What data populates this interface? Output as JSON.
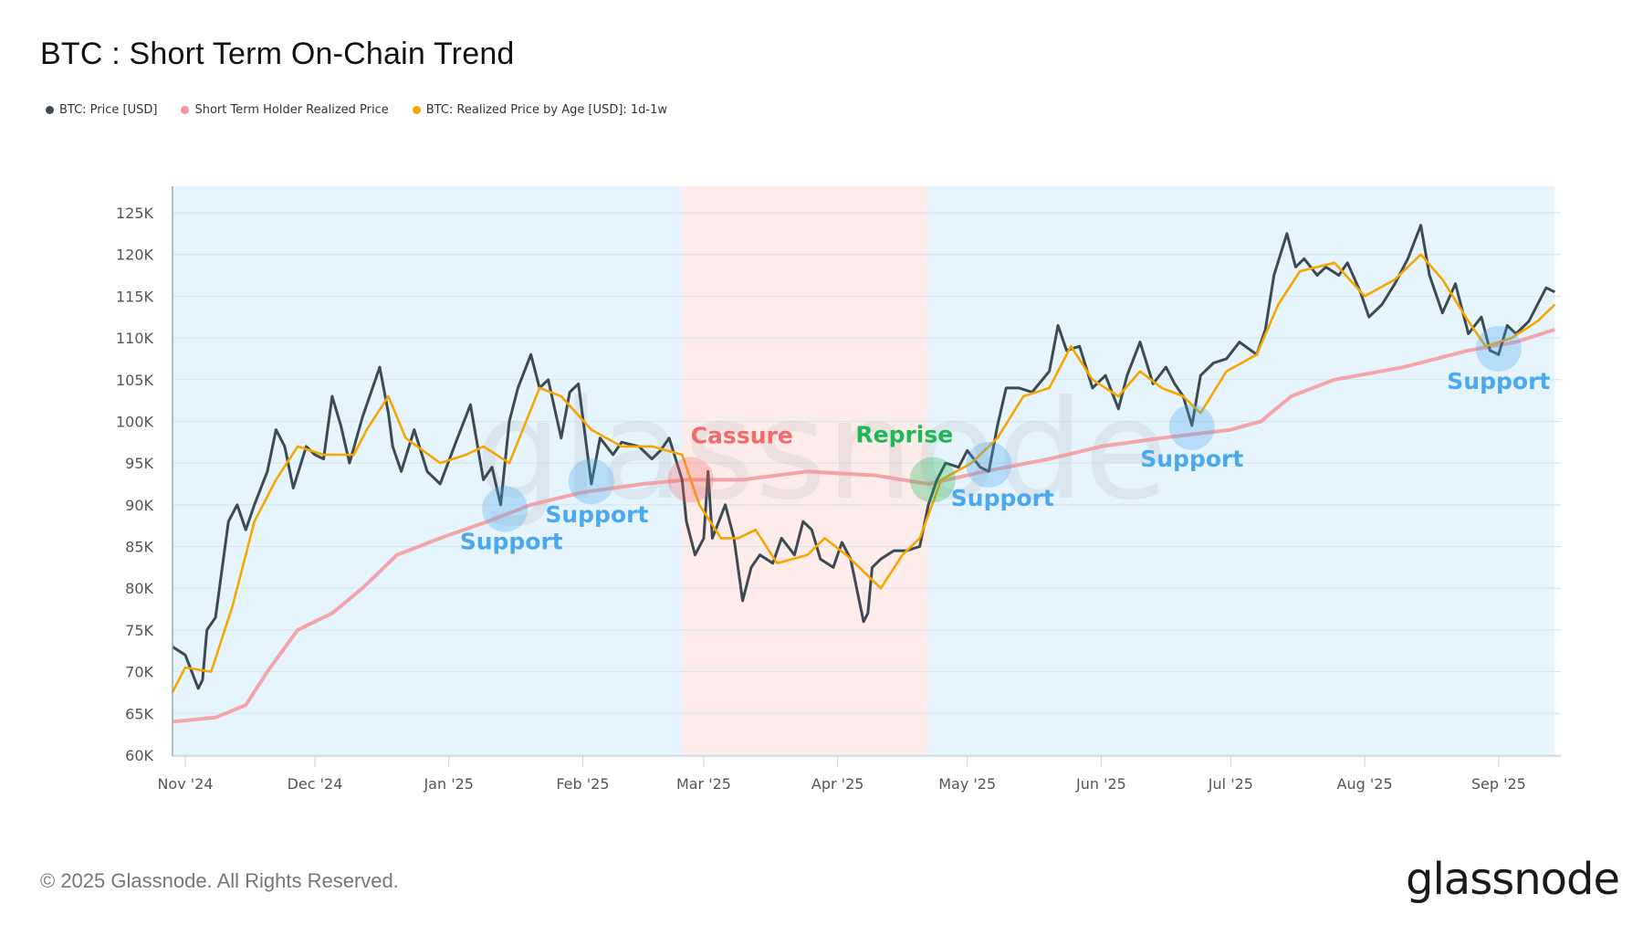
{
  "title": "BTC : Short Term On-Chain Trend",
  "legend": [
    {
      "label": "BTC: Price [USD]",
      "color": "#3d4a52"
    },
    {
      "label": "Short Term Holder Realized Price",
      "color": "#f4979c"
    },
    {
      "label": "BTC: Realized Price by Age [USD]: 1d-1w",
      "color": "#f7a600"
    }
  ],
  "footer": {
    "copyright": "© 2025 Glassnode. All Rights Reserved.",
    "logo": "glassnode"
  },
  "watermark": "glassnode",
  "chart_data": {
    "type": "line",
    "title": "BTC : Short Term On-Chain Trend",
    "xlabel": "",
    "ylabel": "",
    "xlim": [
      "2024-10-29",
      "2025-09-14"
    ],
    "ylim": [
      60000,
      128000
    ],
    "grid": true,
    "legend_position": "top-left",
    "y_ticks": [
      60000,
      65000,
      70000,
      75000,
      80000,
      85000,
      90000,
      95000,
      100000,
      105000,
      110000,
      115000,
      120000,
      125000
    ],
    "y_tick_labels": [
      "60K",
      "65K",
      "70K",
      "75K",
      "80K",
      "85K",
      "90K",
      "95K",
      "100K",
      "105K",
      "110K",
      "115K",
      "120K",
      "125K"
    ],
    "x_ticks": [
      "2024-11-01",
      "2024-12-01",
      "2025-01-01",
      "2025-02-01",
      "2025-03-01",
      "2025-04-01",
      "2025-05-01",
      "2025-06-01",
      "2025-07-01",
      "2025-08-01",
      "2025-09-01"
    ],
    "x_tick_labels": [
      "Nov '24",
      "Dec '24",
      "Jan '25",
      "Feb '25",
      "Mar '25",
      "Apr '25",
      "May '25",
      "Jun '25",
      "Jul '25",
      "Aug '25",
      "Sep '25"
    ],
    "regions": [
      {
        "from": "2024-10-29",
        "to": "2025-02-24",
        "color": "#e6f4fd"
      },
      {
        "from": "2025-02-24",
        "to": "2025-04-22",
        "color": "#fdecea"
      },
      {
        "from": "2025-04-22",
        "to": "2025-09-14",
        "color": "#e6f4fd"
      }
    ],
    "series": [
      {
        "name": "BTC: Price [USD]",
        "color": "#3d4a52",
        "points": [
          [
            "2024-10-29",
            73000
          ],
          [
            "2024-11-01",
            72000
          ],
          [
            "2024-11-04",
            68000
          ],
          [
            "2024-11-05",
            69000
          ],
          [
            "2024-11-06",
            75000
          ],
          [
            "2024-11-08",
            76500
          ],
          [
            "2024-11-11",
            88000
          ],
          [
            "2024-11-13",
            90000
          ],
          [
            "2024-11-15",
            87000
          ],
          [
            "2024-11-17",
            90000
          ],
          [
            "2024-11-20",
            94000
          ],
          [
            "2024-11-22",
            99000
          ],
          [
            "2024-11-24",
            97000
          ],
          [
            "2024-11-26",
            92000
          ],
          [
            "2024-11-29",
            97000
          ],
          [
            "2024-12-01",
            96000
          ],
          [
            "2024-12-03",
            95500
          ],
          [
            "2024-12-05",
            103000
          ],
          [
            "2024-12-07",
            99500
          ],
          [
            "2024-12-09",
            95000
          ],
          [
            "2024-12-12",
            100500
          ],
          [
            "2024-12-16",
            106500
          ],
          [
            "2024-12-18",
            101000
          ],
          [
            "2024-12-19",
            97000
          ],
          [
            "2024-12-21",
            94000
          ],
          [
            "2024-12-24",
            99000
          ],
          [
            "2024-12-27",
            94000
          ],
          [
            "2024-12-30",
            92500
          ],
          [
            "2025-01-03",
            98000
          ],
          [
            "2025-01-06",
            102000
          ],
          [
            "2025-01-09",
            93000
          ],
          [
            "2025-01-11",
            94500
          ],
          [
            "2025-01-13",
            90000
          ],
          [
            "2025-01-15",
            100000
          ],
          [
            "2025-01-17",
            104000
          ],
          [
            "2025-01-20",
            108000
          ],
          [
            "2025-01-22",
            104000
          ],
          [
            "2025-01-24",
            105000
          ],
          [
            "2025-01-27",
            98000
          ],
          [
            "2025-01-29",
            103500
          ],
          [
            "2025-01-31",
            104500
          ],
          [
            "2025-02-03",
            92500
          ],
          [
            "2025-02-05",
            98000
          ],
          [
            "2025-02-08",
            96000
          ],
          [
            "2025-02-10",
            97500
          ],
          [
            "2025-02-14",
            97000
          ],
          [
            "2025-02-17",
            95500
          ],
          [
            "2025-02-19",
            96500
          ],
          [
            "2025-02-21",
            98000
          ],
          [
            "2025-02-24",
            93000
          ],
          [
            "2025-02-25",
            88000
          ],
          [
            "2025-02-27",
            84000
          ],
          [
            "2025-03-01",
            86000
          ],
          [
            "2025-03-02",
            94000
          ],
          [
            "2025-03-03",
            86000
          ],
          [
            "2025-03-06",
            90000
          ],
          [
            "2025-03-08",
            86000
          ],
          [
            "2025-03-10",
            78500
          ],
          [
            "2025-03-12",
            82500
          ],
          [
            "2025-03-14",
            84000
          ],
          [
            "2025-03-17",
            83000
          ],
          [
            "2025-03-19",
            86000
          ],
          [
            "2025-03-22",
            84000
          ],
          [
            "2025-03-24",
            88000
          ],
          [
            "2025-03-26",
            87000
          ],
          [
            "2025-03-28",
            83500
          ],
          [
            "2025-03-31",
            82500
          ],
          [
            "2025-04-02",
            85500
          ],
          [
            "2025-04-04",
            83500
          ],
          [
            "2025-04-07",
            76000
          ],
          [
            "2025-04-08",
            77000
          ],
          [
            "2025-04-09",
            82500
          ],
          [
            "2025-04-11",
            83500
          ],
          [
            "2025-04-14",
            84500
          ],
          [
            "2025-04-17",
            84500
          ],
          [
            "2025-04-20",
            85000
          ],
          [
            "2025-04-22",
            90000
          ],
          [
            "2025-04-24",
            93000
          ],
          [
            "2025-04-26",
            95000
          ],
          [
            "2025-04-29",
            94500
          ],
          [
            "2025-05-01",
            96500
          ],
          [
            "2025-05-04",
            94500
          ],
          [
            "2025-05-06",
            94000
          ],
          [
            "2025-05-08",
            99500
          ],
          [
            "2025-05-10",
            104000
          ],
          [
            "2025-05-13",
            104000
          ],
          [
            "2025-05-16",
            103500
          ],
          [
            "2025-05-20",
            106000
          ],
          [
            "2025-05-22",
            111500
          ],
          [
            "2025-05-24",
            108500
          ],
          [
            "2025-05-27",
            109000
          ],
          [
            "2025-05-30",
            104000
          ],
          [
            "2025-06-02",
            105500
          ],
          [
            "2025-06-05",
            101500
          ],
          [
            "2025-06-07",
            105500
          ],
          [
            "2025-06-10",
            109500
          ],
          [
            "2025-06-13",
            104500
          ],
          [
            "2025-06-16",
            106500
          ],
          [
            "2025-06-18",
            104500
          ],
          [
            "2025-06-20",
            103000
          ],
          [
            "2025-06-22",
            99500
          ],
          [
            "2025-06-24",
            105500
          ],
          [
            "2025-06-27",
            107000
          ],
          [
            "2025-06-30",
            107500
          ],
          [
            "2025-07-03",
            109500
          ],
          [
            "2025-07-07",
            108000
          ],
          [
            "2025-07-09",
            111000
          ],
          [
            "2025-07-11",
            117500
          ],
          [
            "2025-07-14",
            122500
          ],
          [
            "2025-07-16",
            118500
          ],
          [
            "2025-07-18",
            119500
          ],
          [
            "2025-07-21",
            117500
          ],
          [
            "2025-07-23",
            118500
          ],
          [
            "2025-07-26",
            117500
          ],
          [
            "2025-07-28",
            119000
          ],
          [
            "2025-07-31",
            115500
          ],
          [
            "2025-08-02",
            112500
          ],
          [
            "2025-08-05",
            114000
          ],
          [
            "2025-08-08",
            116500
          ],
          [
            "2025-08-11",
            119500
          ],
          [
            "2025-08-14",
            123500
          ],
          [
            "2025-08-16",
            117500
          ],
          [
            "2025-08-19",
            113000
          ],
          [
            "2025-08-22",
            116500
          ],
          [
            "2025-08-25",
            110500
          ],
          [
            "2025-08-28",
            112500
          ],
          [
            "2025-08-30",
            108500
          ],
          [
            "2025-09-01",
            108000
          ],
          [
            "2025-09-03",
            111500
          ],
          [
            "2025-09-05",
            110500
          ],
          [
            "2025-09-08",
            112000
          ],
          [
            "2025-09-10",
            114000
          ],
          [
            "2025-09-12",
            116000
          ],
          [
            "2025-09-14",
            115500
          ]
        ]
      },
      {
        "name": "Short Term Holder Realized Price",
        "color": "#f4979c",
        "points": [
          [
            "2024-10-29",
            64000
          ],
          [
            "2024-11-08",
            64500
          ],
          [
            "2024-11-15",
            66000
          ],
          [
            "2024-11-20",
            70000
          ],
          [
            "2024-11-27",
            75000
          ],
          [
            "2024-12-05",
            77000
          ],
          [
            "2024-12-12",
            80000
          ],
          [
            "2024-12-20",
            84000
          ],
          [
            "2024-12-30",
            86000
          ],
          [
            "2025-01-10",
            88000
          ],
          [
            "2025-01-20",
            90000
          ],
          [
            "2025-02-01",
            91500
          ],
          [
            "2025-02-15",
            92500
          ],
          [
            "2025-02-25",
            93000
          ],
          [
            "2025-03-10",
            93000
          ],
          [
            "2025-03-25",
            94000
          ],
          [
            "2025-04-10",
            93500
          ],
          [
            "2025-04-22",
            92500
          ],
          [
            "2025-05-05",
            94000
          ],
          [
            "2025-05-20",
            95500
          ],
          [
            "2025-06-01",
            97000
          ],
          [
            "2025-06-15",
            98000
          ],
          [
            "2025-07-01",
            99000
          ],
          [
            "2025-07-08",
            100000
          ],
          [
            "2025-07-15",
            103000
          ],
          [
            "2025-07-25",
            105000
          ],
          [
            "2025-08-10",
            106500
          ],
          [
            "2025-08-25",
            108500
          ],
          [
            "2025-09-05",
            109500
          ],
          [
            "2025-09-14",
            111000
          ]
        ]
      },
      {
        "name": "BTC: Realized Price by Age [USD]: 1d-1w",
        "color": "#f7a600",
        "points": [
          [
            "2024-10-29",
            67500
          ],
          [
            "2024-11-01",
            70500
          ],
          [
            "2024-11-07",
            70000
          ],
          [
            "2024-11-12",
            78000
          ],
          [
            "2024-11-17",
            88000
          ],
          [
            "2024-11-22",
            93000
          ],
          [
            "2024-11-27",
            97000
          ],
          [
            "2024-12-03",
            96000
          ],
          [
            "2024-12-10",
            96000
          ],
          [
            "2024-12-13",
            99000
          ],
          [
            "2024-12-18",
            103000
          ],
          [
            "2024-12-22",
            98000
          ],
          [
            "2024-12-30",
            95000
          ],
          [
            "2025-01-05",
            96000
          ],
          [
            "2025-01-09",
            97000
          ],
          [
            "2025-01-15",
            95000
          ],
          [
            "2025-01-22",
            104000
          ],
          [
            "2025-01-27",
            103000
          ],
          [
            "2025-02-03",
            99000
          ],
          [
            "2025-02-10",
            97000
          ],
          [
            "2025-02-17",
            97000
          ],
          [
            "2025-02-24",
            96000
          ],
          [
            "2025-02-28",
            90000
          ],
          [
            "2025-03-05",
            86000
          ],
          [
            "2025-03-09",
            86000
          ],
          [
            "2025-03-13",
            87000
          ],
          [
            "2025-03-18",
            83000
          ],
          [
            "2025-03-25",
            84000
          ],
          [
            "2025-03-29",
            86000
          ],
          [
            "2025-04-03",
            84000
          ],
          [
            "2025-04-07",
            82000
          ],
          [
            "2025-04-11",
            80000
          ],
          [
            "2025-04-16",
            84000
          ],
          [
            "2025-04-20",
            86000
          ],
          [
            "2025-04-25",
            93000
          ],
          [
            "2025-05-02",
            95000
          ],
          [
            "2025-05-08",
            98000
          ],
          [
            "2025-05-14",
            103000
          ],
          [
            "2025-05-20",
            104000
          ],
          [
            "2025-05-25",
            109000
          ],
          [
            "2025-05-30",
            105000
          ],
          [
            "2025-06-05",
            103000
          ],
          [
            "2025-06-10",
            106000
          ],
          [
            "2025-06-15",
            104000
          ],
          [
            "2025-06-20",
            103000
          ],
          [
            "2025-06-24",
            101000
          ],
          [
            "2025-06-30",
            106000
          ],
          [
            "2025-07-07",
            108000
          ],
          [
            "2025-07-12",
            114000
          ],
          [
            "2025-07-17",
            118000
          ],
          [
            "2025-07-25",
            119000
          ],
          [
            "2025-08-01",
            115000
          ],
          [
            "2025-08-08",
            117000
          ],
          [
            "2025-08-14",
            120000
          ],
          [
            "2025-08-19",
            117000
          ],
          [
            "2025-08-25",
            112000
          ],
          [
            "2025-08-29",
            109000
          ],
          [
            "2025-09-04",
            110000
          ],
          [
            "2025-09-10",
            112000
          ],
          [
            "2025-09-14",
            114000
          ]
        ]
      }
    ],
    "annotations": [
      {
        "label": "Support",
        "date": "2025-01-14",
        "value": 89500,
        "color": "#4aa8f0"
      },
      {
        "label": "Support",
        "date": "2025-02-03",
        "value": 92800,
        "color": "#4aa8f0"
      },
      {
        "label": "Cassure",
        "date": "2025-02-26",
        "value": 93000,
        "color": "#f26b6b"
      },
      {
        "label": "Reprise",
        "date": "2025-04-23",
        "value": 93000,
        "color": "#1db954"
      },
      {
        "label": "Support",
        "date": "2025-05-06",
        "value": 94800,
        "color": "#4aa8f0"
      },
      {
        "label": "Support",
        "date": "2025-06-22",
        "value": 99300,
        "color": "#4aa8f0"
      },
      {
        "label": "Support",
        "date": "2025-09-01",
        "value": 108700,
        "color": "#4aa8f0"
      }
    ]
  }
}
